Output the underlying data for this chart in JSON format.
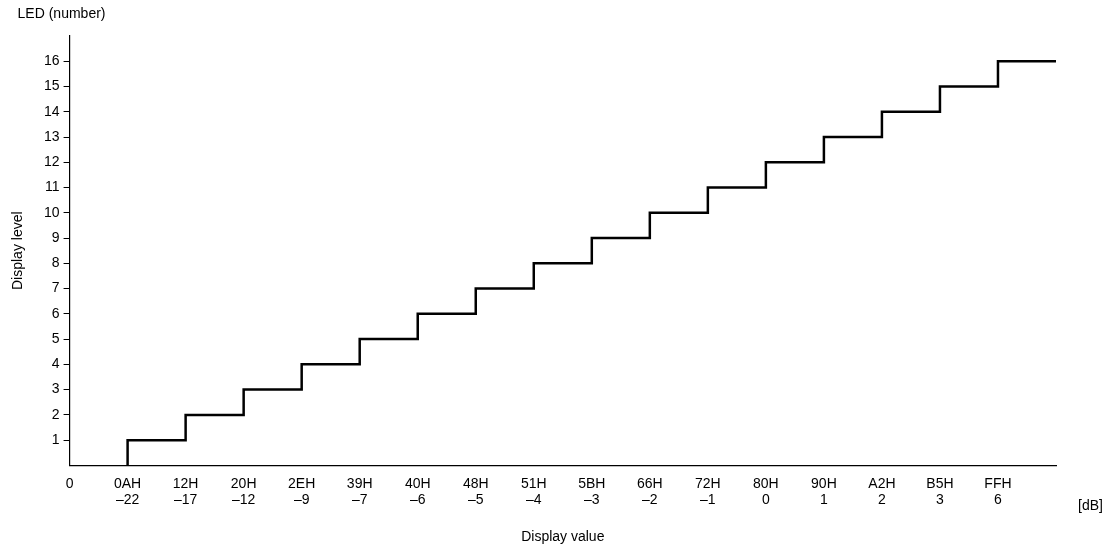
{
  "chart_data": {
    "type": "step",
    "title": "LED (number)",
    "xlabel": "Display value",
    "ylabel": "Display level",
    "categories": [
      "0",
      "0AH\n–22",
      "12H\n–17",
      "20H\n–12",
      "2EH\n–9",
      "39H\n–7",
      "40H\n–6",
      "48H\n–5",
      "51H\n–4",
      "5BH\n–3",
      "66H\n–2",
      "72H\n–1",
      "80H\n0",
      "90H\n1",
      "A2H\n2",
      "B5H\n3",
      "FFH\n6",
      null
    ],
    "series": [
      {
        "color": "#000000",
        "values": [
          null,
          0,
          1,
          2,
          3,
          4,
          5,
          6,
          7,
          8,
          9,
          10,
          11,
          12,
          13,
          14,
          15,
          16
        ]
      }
    ],
    "ylim": [
      0,
      17
    ],
    "yticks": [
      1,
      2,
      3,
      4,
      5,
      6,
      7,
      8,
      9,
      10,
      11,
      12,
      13,
      14,
      15,
      16
    ],
    "annotations": [
      "[dB]"
    ],
    "grid": false,
    "legend": false,
    "marker": "none",
    "line_style": "solid"
  }
}
